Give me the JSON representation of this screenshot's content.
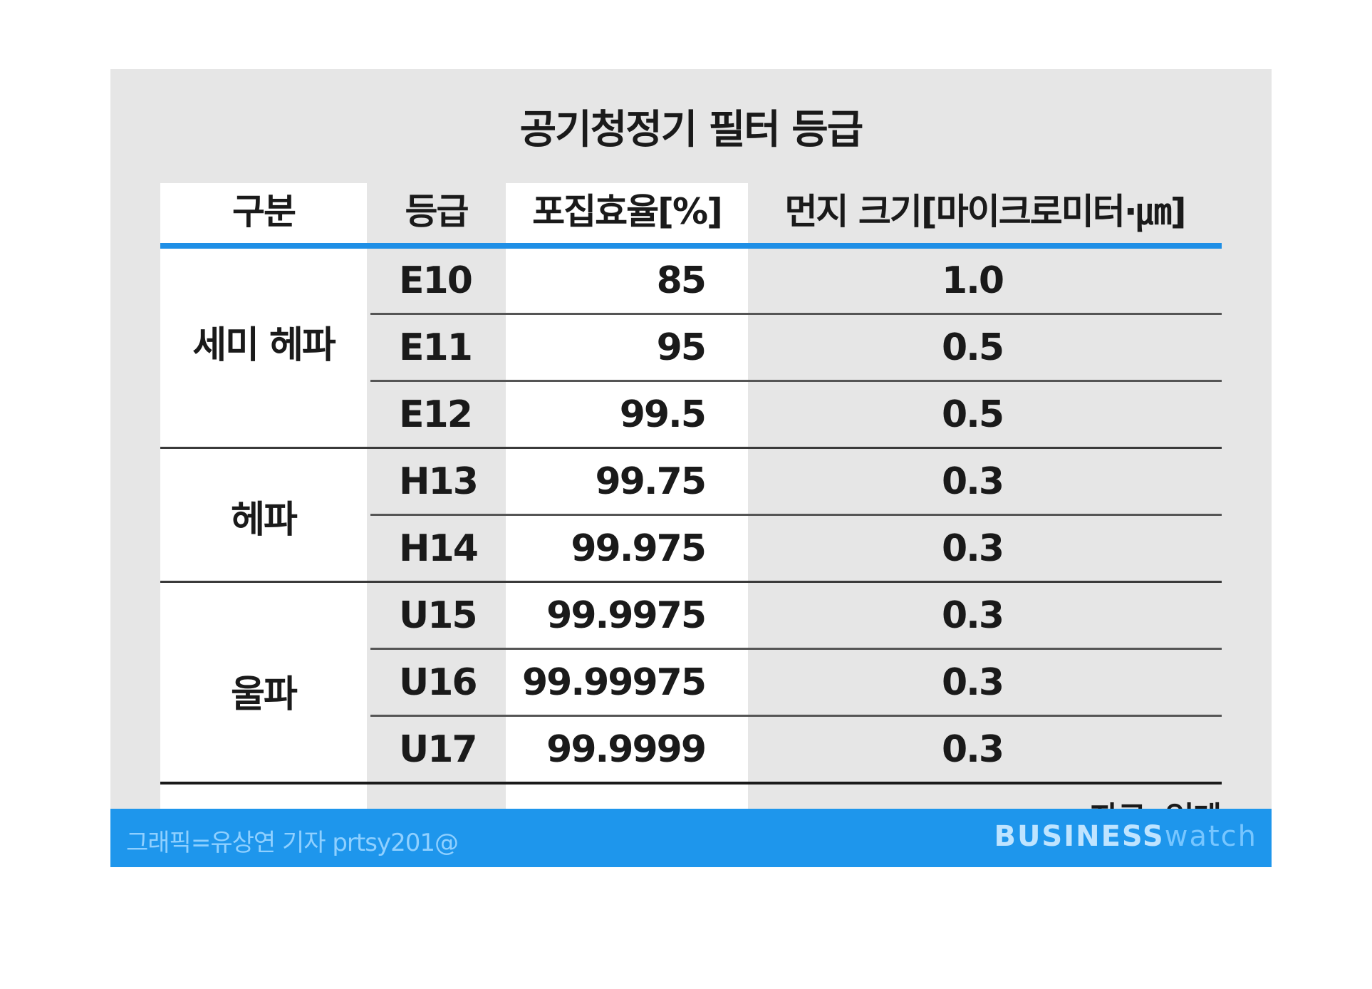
{
  "title": "공기청정기 필터 등급",
  "headers": {
    "category": "구분",
    "grade": "등급",
    "efficiency": "포집효율[%]",
    "dust_size": "먼지 크기[마이크로미터·㎛]"
  },
  "groups": [
    {
      "name": "세미 헤파",
      "rows": [
        {
          "grade": "E10",
          "efficiency": "85",
          "size": "1.0"
        },
        {
          "grade": "E11",
          "efficiency": "95",
          "size": "0.5"
        },
        {
          "grade": "E12",
          "efficiency": "99.5",
          "size": "0.5"
        }
      ]
    },
    {
      "name": "헤파",
      "rows": [
        {
          "grade": "H13",
          "efficiency": "99.75",
          "size": "0.3"
        },
        {
          "grade": "H14",
          "efficiency": "99.975",
          "size": "0.3"
        }
      ]
    },
    {
      "name": "울파",
      "rows": [
        {
          "grade": "U15",
          "efficiency": "99.9975",
          "size": "0.3"
        },
        {
          "grade": "U16",
          "efficiency": "99.99975",
          "size": "0.3"
        },
        {
          "grade": "U17",
          "efficiency": "99.9999",
          "size": "0.3"
        }
      ]
    }
  ],
  "source": "자료: 업계",
  "footer": {
    "credit": "그래픽=유상연 기자 prtsy201@",
    "brand_bold": "BUSINESS",
    "brand_light": "watch"
  },
  "colors": {
    "card_bg": "#e6e6e6",
    "accent_blue": "#1f8fe6",
    "footer_blue": "#1e96ec"
  }
}
